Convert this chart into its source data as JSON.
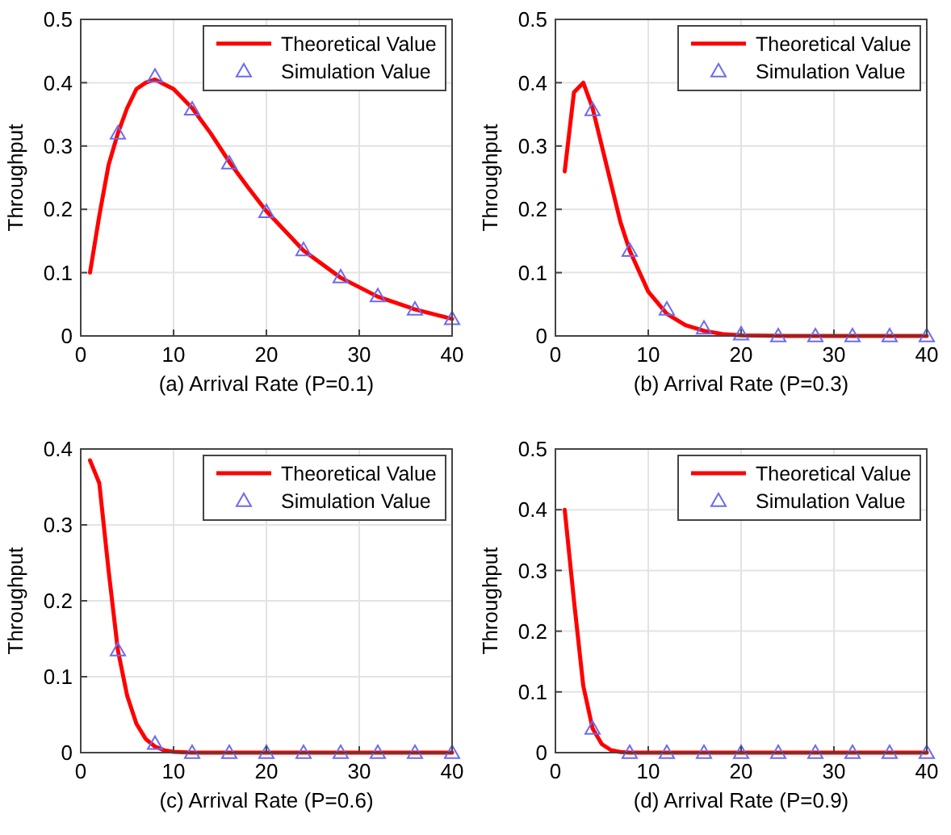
{
  "chart_data": [
    {
      "type": "line",
      "xlabel": "(a) Arrival Rate (P=0.1)",
      "ylabel": "Throughput",
      "xlim": [
        0,
        40
      ],
      "xticks": [
        0,
        10,
        20,
        30,
        40
      ],
      "ylim": [
        0,
        0.5
      ],
      "yticks": [
        0,
        0.1,
        0.2,
        0.3,
        0.4,
        0.5
      ],
      "grid": true,
      "legend": "top right",
      "series": [
        {
          "name": "Theoretical Value",
          "color": "#ff0000",
          "marker": "none",
          "line_style": "solid",
          "x": [
            1,
            2,
            3,
            4,
            5,
            6,
            7,
            8,
            10,
            12,
            14,
            16,
            18,
            20,
            24,
            28,
            32,
            36,
            40
          ],
          "values": [
            0.1,
            0.19,
            0.27,
            0.32,
            0.36,
            0.39,
            0.4,
            0.405,
            0.39,
            0.36,
            0.32,
            0.275,
            0.235,
            0.197,
            0.135,
            0.092,
            0.062,
            0.042,
            0.027
          ]
        },
        {
          "name": "Simulation Value",
          "type": "scatter",
          "color": "#6b6bf0",
          "marker": "triangle",
          "x": [
            4,
            8,
            12,
            16,
            20,
            24,
            28,
            32,
            36,
            40
          ],
          "values": [
            0.32,
            0.41,
            0.358,
            0.273,
            0.196,
            0.136,
            0.093,
            0.063,
            0.042,
            0.027
          ]
        }
      ]
    },
    {
      "type": "line",
      "xlabel": "(b) Arrival Rate (P=0.3)",
      "ylabel": "Throughput",
      "xlim": [
        0,
        40
      ],
      "xticks": [
        0,
        10,
        20,
        30,
        40
      ],
      "ylim": [
        0,
        0.5
      ],
      "yticks": [
        0,
        0.1,
        0.2,
        0.3,
        0.4,
        0.5
      ],
      "grid": true,
      "legend": "top right",
      "series": [
        {
          "name": "Theoretical Value",
          "color": "#ff0000",
          "marker": "none",
          "line_style": "solid",
          "x": [
            1,
            2,
            3,
            4,
            5,
            6,
            7,
            8,
            10,
            12,
            14,
            16,
            18,
            20,
            25,
            30,
            35,
            40
          ],
          "values": [
            0.26,
            0.385,
            0.4,
            0.36,
            0.3,
            0.24,
            0.18,
            0.135,
            0.07,
            0.035,
            0.017,
            0.008,
            0.003,
            0.001,
            0,
            0,
            0,
            0
          ]
        },
        {
          "name": "Simulation Value",
          "type": "scatter",
          "color": "#6b6bf0",
          "marker": "triangle",
          "x": [
            4,
            8,
            12,
            16,
            20,
            24,
            28,
            32,
            36,
            40
          ],
          "values": [
            0.357,
            0.135,
            0.042,
            0.012,
            0.003,
            0,
            0,
            0,
            0,
            0
          ]
        }
      ]
    },
    {
      "type": "line",
      "xlabel": "(c) Arrival Rate (P=0.6)",
      "ylabel": "Throughput",
      "xlim": [
        0,
        40
      ],
      "xticks": [
        0,
        10,
        20,
        30,
        40
      ],
      "ylim": [
        0,
        0.4
      ],
      "yticks": [
        0,
        0.1,
        0.2,
        0.3,
        0.4
      ],
      "grid": true,
      "legend": "top right",
      "series": [
        {
          "name": "Theoretical Value",
          "color": "#ff0000",
          "marker": "none",
          "line_style": "solid",
          "x": [
            1,
            2,
            3,
            4,
            5,
            6,
            7,
            8,
            9,
            10,
            12,
            20,
            30,
            40
          ],
          "values": [
            0.385,
            0.355,
            0.24,
            0.135,
            0.075,
            0.038,
            0.018,
            0.008,
            0.003,
            0.001,
            0,
            0,
            0,
            0
          ]
        },
        {
          "name": "Simulation Value",
          "type": "scatter",
          "color": "#6b6bf0",
          "marker": "triangle",
          "x": [
            4,
            8,
            12,
            16,
            20,
            24,
            28,
            32,
            36,
            40
          ],
          "values": [
            0.135,
            0.012,
            0,
            0,
            0,
            0,
            0,
            0,
            0,
            0
          ]
        }
      ]
    },
    {
      "type": "line",
      "xlabel": "(d) Arrival Rate (P=0.9)",
      "ylabel": "Throughput",
      "xlim": [
        0,
        40
      ],
      "xticks": [
        0,
        10,
        20,
        30,
        40
      ],
      "ylim": [
        0,
        0.5
      ],
      "yticks": [
        0,
        0.1,
        0.2,
        0.3,
        0.4,
        0.5
      ],
      "grid": true,
      "legend": "top right",
      "series": [
        {
          "name": "Theoretical Value",
          "color": "#ff0000",
          "marker": "none",
          "line_style": "solid",
          "x": [
            1,
            2,
            3,
            4,
            5,
            6,
            7,
            8,
            20,
            30,
            40
          ],
          "values": [
            0.4,
            0.25,
            0.11,
            0.04,
            0.014,
            0.004,
            0.001,
            0,
            0,
            0,
            0
          ]
        },
        {
          "name": "Simulation Value",
          "type": "scatter",
          "color": "#6b6bf0",
          "marker": "triangle",
          "x": [
            4,
            8,
            12,
            16,
            20,
            24,
            28,
            32,
            36,
            40
          ],
          "values": [
            0.04,
            0,
            0,
            0,
            0,
            0,
            0,
            0,
            0,
            0
          ]
        }
      ]
    }
  ]
}
